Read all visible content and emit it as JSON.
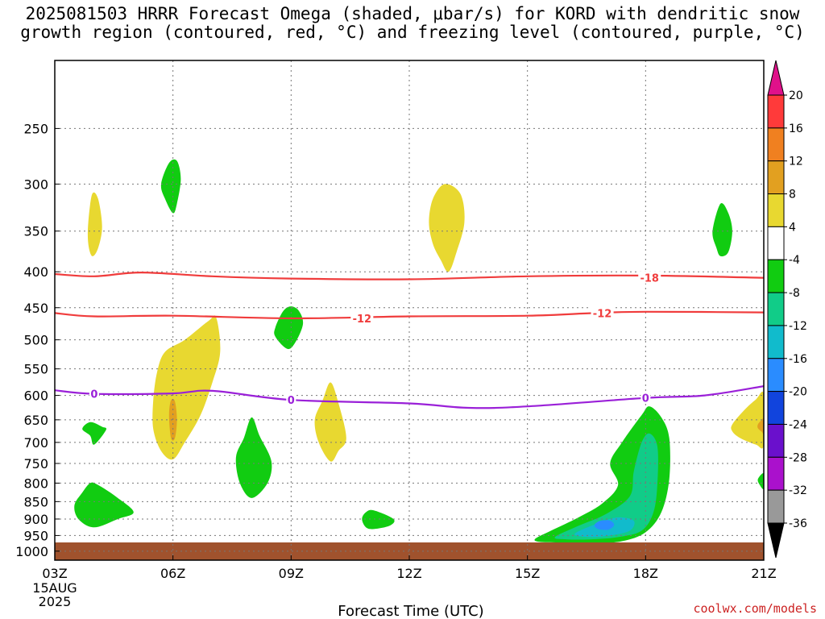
{
  "title": {
    "line1": "2025081503 HRRR Forecast Omega (shaded, μbar/s) for KORD with dendritic snow",
    "line2": "growth region (contoured, red, °C) and freezing level (contoured, purple, °C)"
  },
  "credit": "coolwx.com/models",
  "chart_data": {
    "type": "contour",
    "xlabel": "Forecast Time (UTC)",
    "x_ticks": [
      "03Z",
      "06Z",
      "09Z",
      "12Z",
      "15Z",
      "18Z",
      "21Z"
    ],
    "x_tick_hours": [
      3,
      6,
      9,
      12,
      15,
      18,
      21
    ],
    "x_first_tick_extra": [
      "15AUG",
      "2025"
    ],
    "xlim_hours": [
      3,
      21
    ],
    "ylabel": "",
    "y_ticks": [
      250,
      300,
      350,
      400,
      450,
      500,
      550,
      600,
      650,
      700,
      750,
      800,
      850,
      900,
      950,
      1000
    ],
    "ylim_hpa": [
      200,
      1030
    ],
    "y_scale": "log",
    "grid": true,
    "colorbar": {
      "labels": [
        "20",
        "16",
        "12",
        "8",
        "4",
        "-4",
        "-8",
        "-12",
        "-16",
        "-20",
        "-24",
        "-28",
        "-32",
        "-36"
      ],
      "colors": [
        "#e0118a",
        "#ff3a3a",
        "#f08020",
        "#e2a020",
        "#e8d830",
        "#ffffff",
        "#11cc11",
        "#11cc88",
        "#11bbcc",
        "#2a8cff",
        "#1144dd",
        "#6a10cc",
        "#aa11cc",
        "#999999",
        "#000000"
      ]
    },
    "terrain_color": "#a0522d",
    "contours": [
      {
        "name": "dgz_-18",
        "color": "#f03c3c",
        "label": "-18",
        "points": [
          [
            3.0,
            403
          ],
          [
            4.0,
            406
          ],
          [
            5.2,
            401
          ],
          [
            7.0,
            406
          ],
          [
            9.0,
            409
          ],
          [
            12.0,
            410
          ],
          [
            15.0,
            406
          ],
          [
            18.0,
            405
          ],
          [
            21.0,
            408
          ]
        ]
      },
      {
        "name": "dgz_-12",
        "color": "#f03c3c",
        "label": "-12",
        "points": [
          [
            3.0,
            458
          ],
          [
            4.0,
            463
          ],
          [
            6.0,
            462
          ],
          [
            9.0,
            466
          ],
          [
            12.0,
            463
          ],
          [
            15.0,
            462
          ],
          [
            16.7,
            458
          ],
          [
            18.0,
            456
          ],
          [
            21.0,
            457
          ]
        ]
      },
      {
        "name": "freezing_0",
        "color": "#9a20d8",
        "label": "0",
        "points": [
          [
            3.0,
            590
          ],
          [
            4.0,
            597
          ],
          [
            6.0,
            596
          ],
          [
            7.0,
            591
          ],
          [
            9.0,
            609
          ],
          [
            12.0,
            616
          ],
          [
            13.5,
            625
          ],
          [
            15.0,
            622
          ],
          [
            18.0,
            605
          ],
          [
            19.5,
            600
          ],
          [
            21.0,
            582
          ]
        ]
      }
    ],
    "contour_label_positions": [
      {
        "label": "-18",
        "x": 18.1,
        "y": 408,
        "color": "#f03c3c"
      },
      {
        "label": "-12",
        "x": 10.8,
        "y": 466,
        "color": "#f03c3c"
      },
      {
        "label": "-12",
        "x": 16.9,
        "y": 458,
        "color": "#f03c3c"
      },
      {
        "label": "0",
        "x": 4.0,
        "y": 597,
        "color": "#9a20d8"
      },
      {
        "label": "0",
        "x": 9.0,
        "y": 609,
        "color": "#9a20d8"
      },
      {
        "label": "0",
        "x": 18.0,
        "y": 605,
        "color": "#9a20d8"
      }
    ],
    "shaded_regions": [
      {
        "name": "rising_6z_upper",
        "value": -6,
        "color": "#11cc11",
        "points": [
          [
            5.7,
            300
          ],
          [
            5.9,
            280
          ],
          [
            6.1,
            278
          ],
          [
            6.2,
            295
          ],
          [
            6.1,
            320
          ],
          [
            6.0,
            330
          ],
          [
            5.8,
            315
          ]
        ]
      },
      {
        "name": "rising_9z_mid",
        "value": -6,
        "color": "#11cc11",
        "points": [
          [
            8.6,
            480
          ],
          [
            8.8,
            455
          ],
          [
            9.0,
            448
          ],
          [
            9.2,
            455
          ],
          [
            9.3,
            475
          ],
          [
            9.1,
            505
          ],
          [
            8.9,
            515
          ],
          [
            8.6,
            495
          ]
        ]
      },
      {
        "name": "rising_4z_small",
        "value": -6,
        "color": "#11cc11",
        "points": [
          [
            3.7,
            670
          ],
          [
            3.9,
            655
          ],
          [
            4.2,
            665
          ],
          [
            4.3,
            672
          ],
          [
            4.0,
            705
          ],
          [
            3.9,
            685
          ]
        ]
      },
      {
        "name": "rising_4z_low",
        "value": -6,
        "color": "#11cc11",
        "points": [
          [
            3.5,
            860
          ],
          [
            3.7,
            825
          ],
          [
            3.9,
            800
          ],
          [
            4.1,
            805
          ],
          [
            4.6,
            840
          ],
          [
            5.0,
            880
          ],
          [
            4.6,
            900
          ],
          [
            4.0,
            925
          ],
          [
            3.6,
            900
          ]
        ]
      },
      {
        "name": "rising_8z",
        "value": -6,
        "color": "#11cc11",
        "points": [
          [
            7.6,
            735
          ],
          [
            7.8,
            690
          ],
          [
            8.0,
            645
          ],
          [
            8.2,
            685
          ],
          [
            8.5,
            745
          ],
          [
            8.4,
            800
          ],
          [
            8.0,
            840
          ],
          [
            7.7,
            800
          ]
        ]
      },
      {
        "name": "rising_11z",
        "value": -6,
        "color": "#11cc11",
        "points": [
          [
            10.8,
            900
          ],
          [
            10.9,
            880
          ],
          [
            11.1,
            875
          ],
          [
            11.6,
            900
          ],
          [
            11.5,
            920
          ],
          [
            11.1,
            930
          ],
          [
            10.9,
            925
          ]
        ]
      },
      {
        "name": "rising_20z_upper",
        "value": -6,
        "color": "#11cc11",
        "points": [
          [
            19.7,
            350
          ],
          [
            19.9,
            320
          ],
          [
            20.1,
            330
          ],
          [
            20.2,
            350
          ],
          [
            20.1,
            375
          ],
          [
            19.9,
            380
          ],
          [
            19.8,
            370
          ]
        ]
      },
      {
        "name": "rising_21z_edge",
        "value": -6,
        "color": "#11cc11",
        "points": [
          [
            20.85,
            790
          ],
          [
            21.0,
            775
          ],
          [
            21.0,
            815
          ],
          [
            20.9,
            805
          ]
        ]
      },
      {
        "name": "rising_17z_outer",
        "value": -6,
        "color": "#11cc11",
        "points": [
          [
            15.2,
            960
          ],
          [
            15.6,
            935
          ],
          [
            16.3,
            895
          ],
          [
            16.9,
            855
          ],
          [
            17.3,
            805
          ],
          [
            17.1,
            750
          ],
          [
            17.4,
            700
          ],
          [
            17.9,
            640
          ],
          [
            18.1,
            622
          ],
          [
            18.4,
            645
          ],
          [
            18.6,
            690
          ],
          [
            18.6,
            790
          ],
          [
            18.4,
            880
          ],
          [
            18.0,
            940
          ],
          [
            17.4,
            968
          ],
          [
            16.6,
            975
          ],
          [
            15.8,
            972
          ],
          [
            15.3,
            970
          ]
        ]
      },
      {
        "name": "rising_17z_teal",
        "value": -10,
        "color": "#11cc88",
        "points": [
          [
            15.7,
            955
          ],
          [
            16.3,
            920
          ],
          [
            17.0,
            885
          ],
          [
            17.6,
            835
          ],
          [
            17.7,
            770
          ],
          [
            17.9,
            700
          ],
          [
            18.1,
            680
          ],
          [
            18.3,
            710
          ],
          [
            18.3,
            800
          ],
          [
            18.2,
            880
          ],
          [
            17.9,
            935
          ],
          [
            17.3,
            955
          ],
          [
            16.6,
            962
          ],
          [
            16.0,
            962
          ]
        ]
      },
      {
        "name": "rising_17z_cyan",
        "value": -14,
        "color": "#11bbcc",
        "points": [
          [
            16.2,
            945
          ],
          [
            16.8,
            912
          ],
          [
            17.3,
            895
          ],
          [
            17.7,
            905
          ],
          [
            17.6,
            935
          ],
          [
            17.1,
            950
          ],
          [
            16.6,
            955
          ]
        ]
      },
      {
        "name": "rising_17z_blue",
        "value": -18,
        "color": "#2a8cff",
        "points": [
          [
            16.7,
            918
          ],
          [
            16.85,
            905
          ],
          [
            17.1,
            905
          ],
          [
            17.2,
            918
          ],
          [
            17.05,
            932
          ],
          [
            16.8,
            930
          ]
        ]
      },
      {
        "name": "sinking_4z",
        "value": 5,
        "color": "#e8d830",
        "points": [
          [
            3.85,
            340
          ],
          [
            3.95,
            310
          ],
          [
            4.1,
            315
          ],
          [
            4.2,
            345
          ],
          [
            4.1,
            370
          ],
          [
            3.95,
            380
          ],
          [
            3.85,
            365
          ]
        ]
      },
      {
        "name": "sinking_6z",
        "value": 5,
        "color": "#e8d830",
        "points": [
          [
            5.5,
            610
          ],
          [
            5.6,
            555
          ],
          [
            5.8,
            520
          ],
          [
            6.3,
            500
          ],
          [
            6.9,
            470
          ],
          [
            7.1,
            465
          ],
          [
            7.2,
            520
          ],
          [
            7.0,
            575
          ],
          [
            6.7,
            640
          ],
          [
            6.3,
            700
          ],
          [
            6.0,
            740
          ],
          [
            5.7,
            720
          ],
          [
            5.5,
            670
          ]
        ]
      },
      {
        "name": "sinking_6z_orange",
        "value": 9,
        "color": "#e2a020",
        "points": [
          [
            5.9,
            640
          ],
          [
            5.95,
            610
          ],
          [
            6.05,
            612
          ],
          [
            6.1,
            650
          ],
          [
            6.05,
            690
          ],
          [
            5.95,
            690
          ]
        ]
      },
      {
        "name": "sinking_10z",
        "value": 5,
        "color": "#e8d830",
        "points": [
          [
            9.6,
            650
          ],
          [
            9.8,
            610
          ],
          [
            10.0,
            575
          ],
          [
            10.2,
            615
          ],
          [
            10.4,
            690
          ],
          [
            10.2,
            720
          ],
          [
            10.0,
            745
          ],
          [
            9.7,
            700
          ]
        ]
      },
      {
        "name": "sinking_13z",
        "value": 5,
        "color": "#e8d830",
        "points": [
          [
            12.5,
            340
          ],
          [
            12.6,
            315
          ],
          [
            12.9,
            300
          ],
          [
            13.3,
            310
          ],
          [
            13.4,
            340
          ],
          [
            13.2,
            375
          ],
          [
            13.0,
            400
          ],
          [
            12.8,
            385
          ],
          [
            12.6,
            365
          ]
        ]
      },
      {
        "name": "sinking_21z",
        "value": 5,
        "color": "#e8d830",
        "points": [
          [
            20.2,
            660
          ],
          [
            20.5,
            630
          ],
          [
            20.8,
            608
          ],
          [
            21.0,
            598
          ],
          [
            21.0,
            705
          ],
          [
            20.8,
            705
          ],
          [
            20.4,
            690
          ],
          [
            20.2,
            675
          ]
        ]
      },
      {
        "name": "sinking_21z_orange",
        "value": 9,
        "color": "#e2a020",
        "points": [
          [
            20.85,
            660
          ],
          [
            20.95,
            650
          ],
          [
            21.0,
            648
          ],
          [
            21.0,
            680
          ],
          [
            20.95,
            676
          ],
          [
            20.85,
            668
          ]
        ]
      }
    ]
  }
}
